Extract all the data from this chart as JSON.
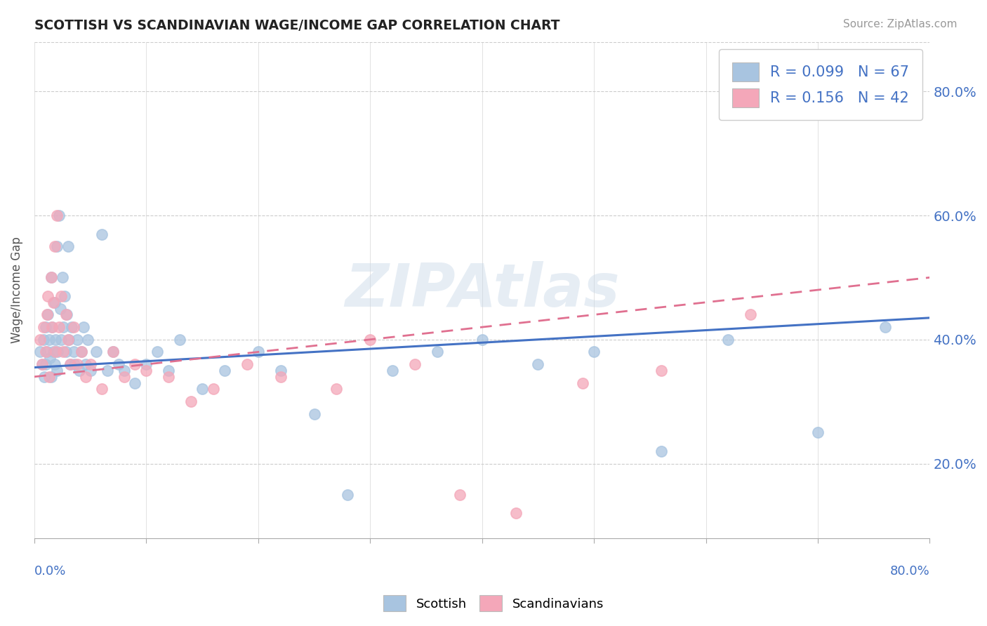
{
  "title": "SCOTTISH VS SCANDINAVIAN WAGE/INCOME GAP CORRELATION CHART",
  "source_text": "Source: ZipAtlas.com",
  "ylabel": "Wage/Income Gap",
  "xmin": 0.0,
  "xmax": 0.8,
  "ymin": 0.08,
  "ymax": 0.88,
  "yticks": [
    0.2,
    0.4,
    0.6,
    0.8
  ],
  "ytick_labels": [
    "20.0%",
    "40.0%",
    "60.0%",
    "80.0%"
  ],
  "watermark": "ZIPAtlas",
  "scottish_color": "#a8c4e0",
  "scandinavian_color": "#f4a7b9",
  "scottish_line_color": "#4472c4",
  "scandinavian_line_color": "#e07090",
  "R_scottish": 0.099,
  "N_scottish": 67,
  "R_scandinavian": 0.156,
  "N_scandinavian": 42,
  "sc_line_x0": 0.0,
  "sc_line_y0": 0.355,
  "sc_line_x1": 0.8,
  "sc_line_y1": 0.435,
  "scand_line_x0": 0.0,
  "scand_line_y0": 0.34,
  "scand_line_x1": 0.8,
  "scand_line_y1": 0.5,
  "scottish_scatter_x": [
    0.005,
    0.007,
    0.008,
    0.009,
    0.01,
    0.01,
    0.011,
    0.012,
    0.013,
    0.014,
    0.015,
    0.015,
    0.016,
    0.017,
    0.018,
    0.018,
    0.019,
    0.02,
    0.02,
    0.021,
    0.022,
    0.023,
    0.024,
    0.025,
    0.026,
    0.027,
    0.028,
    0.029,
    0.03,
    0.031,
    0.032,
    0.033,
    0.035,
    0.036,
    0.038,
    0.04,
    0.042,
    0.044,
    0.046,
    0.048,
    0.05,
    0.055,
    0.06,
    0.065,
    0.07,
    0.075,
    0.08,
    0.09,
    0.1,
    0.11,
    0.12,
    0.13,
    0.15,
    0.17,
    0.2,
    0.22,
    0.25,
    0.28,
    0.32,
    0.36,
    0.4,
    0.45,
    0.5,
    0.56,
    0.62,
    0.7,
    0.76
  ],
  "scottish_scatter_y": [
    0.38,
    0.36,
    0.4,
    0.34,
    0.42,
    0.36,
    0.38,
    0.44,
    0.4,
    0.37,
    0.5,
    0.34,
    0.42,
    0.38,
    0.46,
    0.36,
    0.4,
    0.55,
    0.35,
    0.38,
    0.6,
    0.45,
    0.4,
    0.5,
    0.42,
    0.47,
    0.38,
    0.44,
    0.55,
    0.4,
    0.36,
    0.42,
    0.38,
    0.36,
    0.4,
    0.35,
    0.38,
    0.42,
    0.36,
    0.4,
    0.35,
    0.38,
    0.57,
    0.35,
    0.38,
    0.36,
    0.35,
    0.33,
    0.36,
    0.38,
    0.35,
    0.4,
    0.32,
    0.35,
    0.38,
    0.35,
    0.28,
    0.15,
    0.35,
    0.38,
    0.4,
    0.36,
    0.38,
    0.22,
    0.4,
    0.25,
    0.42
  ],
  "scandinavian_scatter_x": [
    0.005,
    0.007,
    0.008,
    0.01,
    0.011,
    0.012,
    0.013,
    0.015,
    0.016,
    0.017,
    0.018,
    0.019,
    0.02,
    0.022,
    0.024,
    0.026,
    0.028,
    0.03,
    0.032,
    0.035,
    0.038,
    0.042,
    0.046,
    0.05,
    0.06,
    0.07,
    0.08,
    0.09,
    0.1,
    0.12,
    0.14,
    0.16,
    0.19,
    0.22,
    0.27,
    0.3,
    0.34,
    0.38,
    0.43,
    0.49,
    0.56,
    0.64
  ],
  "scandinavian_scatter_y": [
    0.4,
    0.36,
    0.42,
    0.38,
    0.44,
    0.47,
    0.34,
    0.5,
    0.42,
    0.46,
    0.55,
    0.38,
    0.6,
    0.42,
    0.47,
    0.38,
    0.44,
    0.4,
    0.36,
    0.42,
    0.36,
    0.38,
    0.34,
    0.36,
    0.32,
    0.38,
    0.34,
    0.36,
    0.35,
    0.34,
    0.3,
    0.32,
    0.36,
    0.34,
    0.32,
    0.4,
    0.36,
    0.15,
    0.12,
    0.33,
    0.35,
    0.44
  ],
  "background_color": "#ffffff",
  "grid_color": "#cccccc",
  "axis_label_color": "#4472c4",
  "title_color": "#222222"
}
